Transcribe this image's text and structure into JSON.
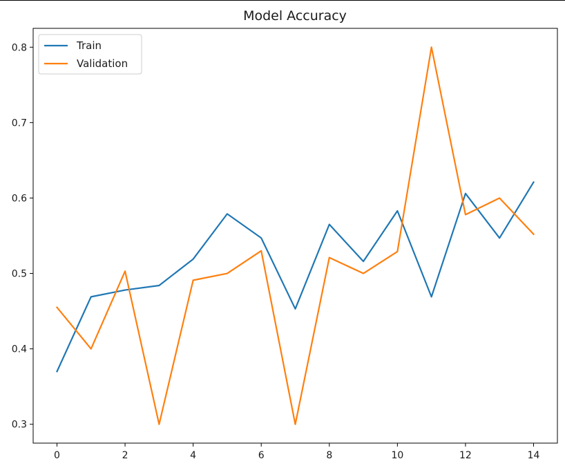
{
  "chart_data": {
    "type": "line",
    "title": "Model Accuracy",
    "xlabel": "",
    "ylabel": "",
    "x": [
      0,
      1,
      2,
      3,
      4,
      5,
      6,
      7,
      8,
      9,
      10,
      11,
      12,
      13,
      14
    ],
    "xlim": [
      -0.7,
      14.7
    ],
    "ylim": [
      0.275,
      0.825
    ],
    "x_ticks": [
      0,
      2,
      4,
      6,
      8,
      10,
      12,
      14
    ],
    "y_ticks": [
      0.3,
      0.4,
      0.5,
      0.6,
      0.7,
      0.8
    ],
    "x_tick_labels": [
      "0",
      "2",
      "4",
      "6",
      "8",
      "10",
      "12",
      "14"
    ],
    "y_tick_labels": [
      "0.3",
      "0.4",
      "0.5",
      "0.6",
      "0.7",
      "0.8"
    ],
    "grid": false,
    "legend_position": "top-left",
    "series": [
      {
        "name": "Train",
        "color": "#1f77b4",
        "values": [
          0.37,
          0.469,
          0.478,
          0.484,
          0.519,
          0.579,
          0.547,
          0.453,
          0.565,
          0.516,
          0.583,
          0.469,
          0.606,
          0.547,
          0.621
        ]
      },
      {
        "name": "Validation",
        "color": "#ff7f0e",
        "values": [
          0.455,
          0.4,
          0.503,
          0.3,
          0.491,
          0.5,
          0.53,
          0.3,
          0.521,
          0.5,
          0.529,
          0.8,
          0.578,
          0.6,
          0.552
        ]
      }
    ]
  }
}
